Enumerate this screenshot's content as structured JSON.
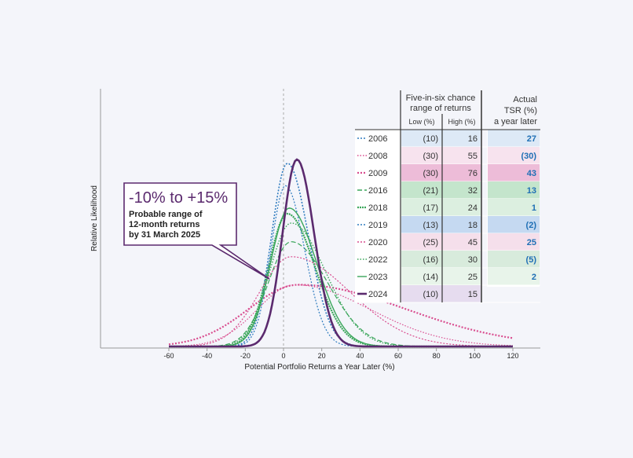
{
  "chart_data": {
    "type": "line",
    "xlabel": "Potential Portfolio Returns a Year Later (%)",
    "ylabel": "Relative Likelihood",
    "xlim": [
      -60,
      120
    ],
    "x_ticks": [
      "-60",
      "-40",
      "-20",
      "0",
      "20",
      "40",
      "60",
      "80",
      "100",
      "120"
    ],
    "series": [
      {
        "name": "2006",
        "color": "#2e7bbf",
        "dash": "2,2",
        "width": 1.6,
        "mean": 2,
        "sigma": 11,
        "peak": 0.98,
        "skew": 1.0
      },
      {
        "name": "2008",
        "color": "#d94d8f",
        "dash": "1.5,2",
        "width": 1.2,
        "mean": 6,
        "sigma": 26,
        "peak": 0.33,
        "skew": 1.5
      },
      {
        "name": "2009",
        "color": "#d94d8f",
        "dash": "2,2",
        "width": 2.2,
        "mean": 8,
        "sigma": 35,
        "peak": 0.33,
        "skew": 1.6
      },
      {
        "name": "2016",
        "color": "#3aa65a",
        "dash": "6,3",
        "width": 1.2,
        "mean": 4,
        "sigma": 16,
        "peak": 0.56,
        "skew": 1.2
      },
      {
        "name": "2018",
        "color": "#3aa65a",
        "dash": "2,1",
        "width": 2.2,
        "mean": 2,
        "sigma": 13,
        "peak": 0.71,
        "skew": 1.1
      },
      {
        "name": "2019",
        "color": "#2e7bbf",
        "dash": "2,2",
        "width": 1.2,
        "mean": 1,
        "sigma": 10,
        "peak": 0.86,
        "skew": 1.0
      },
      {
        "name": "2020",
        "color": "#d94d8f",
        "dash": "2,2",
        "width": 1.2,
        "mean": 4,
        "sigma": 22,
        "peak": 0.48,
        "skew": 1.4
      },
      {
        "name": "2022",
        "color": "#3aa65a",
        "dash": "1.5,2",
        "width": 1.4,
        "mean": 4,
        "sigma": 15,
        "peak": 0.66,
        "skew": 1.2
      },
      {
        "name": "2023",
        "color": "#3aa65a",
        "dash": "",
        "width": 1.4,
        "mean": 3,
        "sigma": 13,
        "peak": 0.74,
        "skew": 1.1
      },
      {
        "name": "2024",
        "color": "#5b2a6e",
        "dash": "",
        "width": 2.6,
        "mean": 7,
        "sigma": 10,
        "peak": 1.0,
        "skew": 0.9
      }
    ]
  },
  "table": {
    "title_line1": "Five-in-six chance",
    "title_line2": "range of returns",
    "col_low": "Low (%)",
    "col_high": "High (%)",
    "tsr_head1": "Actual",
    "tsr_head2": "TSR  (%)",
    "tsr_head3": "a year later",
    "rows": [
      {
        "year": "2006",
        "low": "(10)",
        "high": "16",
        "tsr": "27",
        "bg": "#dde9f6",
        "tsrbg": "#dde9f6"
      },
      {
        "year": "2008",
        "low": "(30)",
        "high": "55",
        "tsr": "(30)",
        "bg": "#f7e3ee",
        "tsrbg": "#f7e3ee"
      },
      {
        "year": "2009",
        "low": "(30)",
        "high": "76",
        "tsr": "43",
        "bg": "#edbcd8",
        "tsrbg": "#edbcd8"
      },
      {
        "year": "2016",
        "low": "(21)",
        "high": "32",
        "tsr": "13",
        "bg": "#c4e5cc",
        "tsrbg": "#c4e5cc"
      },
      {
        "year": "2018",
        "low": "(17)",
        "high": "24",
        "tsr": "1",
        "bg": "#dcefe0",
        "tsrbg": "#dcefe0"
      },
      {
        "year": "2019",
        "low": "(13)",
        "high": "18",
        "tsr": "(2)",
        "bg": "#c5d9f1",
        "tsrbg": "#c5d9f1"
      },
      {
        "year": "2020",
        "low": "(25)",
        "high": "45",
        "tsr": "25",
        "bg": "#f5dfeb",
        "tsrbg": "#f5dfeb"
      },
      {
        "year": "2022",
        "low": "(16)",
        "high": "30",
        "tsr": "(5)",
        "bg": "#d8ebdc",
        "tsrbg": "#d8ebdc"
      },
      {
        "year": "2023",
        "low": "(14)",
        "high": "25",
        "tsr": "2",
        "bg": "#e8f4ea",
        "tsrbg": "#e8f4ea"
      },
      {
        "year": "2024",
        "low": "(10)",
        "high": "15",
        "tsr": "",
        "bg": "#e6dcef",
        "tsrbg": ""
      }
    ]
  },
  "annotation": {
    "headline": "-10% to +15%",
    "line1": "Probable range of",
    "line2": "12-month returns",
    "line3": "by 31 March 2025"
  },
  "colors": {
    "accent": "#5b2a6e",
    "blue": "#2e7bbf",
    "pink": "#d94d8f",
    "green": "#3aa65a"
  }
}
